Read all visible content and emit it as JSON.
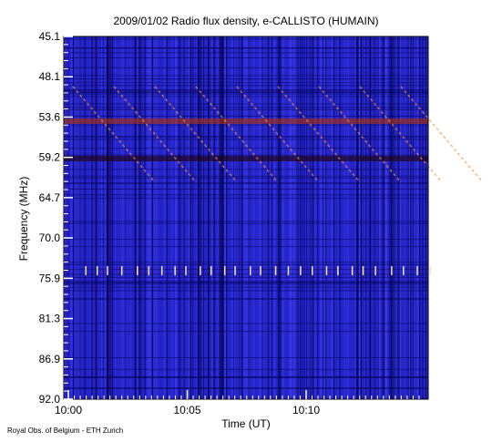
{
  "chart_data": {
    "type": "spectrogram",
    "title": "2009/01/02  Radio flux density, e-CALLISTO (HUMAIN)",
    "ylabel": "Frequency (MHz)",
    "xlabel": "Time (UT)",
    "footer": "Royal Obs. of Belgium - ETH Zurich",
    "yticks": [
      45.1,
      48.1,
      53.6,
      59.2,
      64.7,
      {
        "value": 70,
        "label": "70.0"
      },
      75.9,
      81.3,
      86.9,
      {
        "value": 92,
        "label": "92.0"
      }
    ],
    "xticks": [
      "10:00",
      "10:05",
      "10:10"
    ]
  }
}
